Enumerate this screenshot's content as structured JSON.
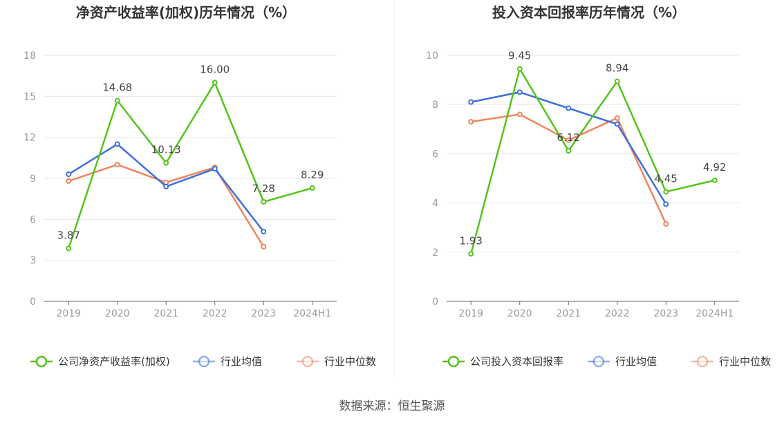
{
  "source": "数据来源：恒生聚源",
  "colors": {
    "company": "#52c41a",
    "avg": "#3a6fdc",
    "median": "#f0845a",
    "grid": "#e4e7ef",
    "axis": "#666666"
  },
  "chart_data": [
    {
      "type": "line",
      "title": "净资产收益率(加权)历年情况（%）",
      "categories": [
        "2019",
        "2020",
        "2021",
        "2022",
        "2023",
        "2024H1"
      ],
      "ylim": [
        0,
        18
      ],
      "yticks": [
        "0",
        "3",
        "6",
        "9",
        "12",
        "15",
        "18"
      ],
      "grid": true,
      "legend_position": "bottom",
      "series": [
        {
          "name": "公司净资产收益率(加权)",
          "key": "company",
          "values": [
            3.87,
            14.68,
            10.13,
            16.0,
            7.28,
            8.29
          ],
          "labels": [
            "3.87",
            "14.68",
            "10.13",
            "16.00",
            "7.28",
            "8.29"
          ]
        },
        {
          "name": "行业均值",
          "key": "avg",
          "values": [
            9.3,
            11.5,
            8.4,
            9.7,
            5.1,
            null
          ]
        },
        {
          "name": "行业中位数",
          "key": "median",
          "values": [
            8.8,
            10.0,
            8.7,
            9.8,
            4.0,
            null
          ]
        }
      ]
    },
    {
      "type": "line",
      "title": "投入资本回报率历年情况（%）",
      "categories": [
        "2019",
        "2020",
        "2021",
        "2022",
        "2023",
        "2024H1"
      ],
      "ylim": [
        0,
        10
      ],
      "yticks": [
        "0",
        "2",
        "4",
        "6",
        "8",
        "10"
      ],
      "grid": true,
      "legend_position": "bottom",
      "series": [
        {
          "name": "公司投入资本回报率",
          "key": "company",
          "values": [
            1.93,
            9.45,
            6.12,
            8.94,
            4.45,
            4.92
          ],
          "labels": [
            "1.93",
            "9.45",
            "6.12",
            "8.94",
            "4.45",
            "4.92"
          ]
        },
        {
          "name": "行业均值",
          "key": "avg",
          "values": [
            8.1,
            8.5,
            7.85,
            7.2,
            3.95,
            null
          ]
        },
        {
          "name": "行业中位数",
          "key": "median",
          "values": [
            7.3,
            7.6,
            6.55,
            7.45,
            3.15,
            null
          ]
        }
      ]
    }
  ]
}
